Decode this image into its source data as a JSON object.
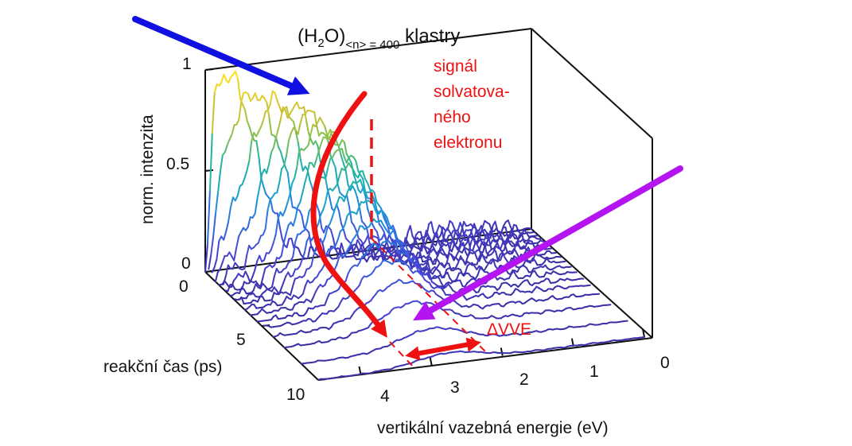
{
  "chart_data": {
    "type": "waterfall-3d",
    "title": {
      "prefix": "(H",
      "sub1": "2",
      "mid": "O)",
      "sub2": "<n> = 400",
      "suffix": " klastry"
    },
    "x_axis": {
      "label": "vertikální vazebná energie (eV)",
      "ticks": [
        "4",
        "3",
        "2",
        "1",
        "0"
      ],
      "range": [
        4.6,
        0
      ]
    },
    "y_axis": {
      "label": "reakční čas (ps)",
      "ticks": [
        "0",
        "5",
        "10"
      ],
      "range": [
        0,
        10
      ]
    },
    "z_axis": {
      "label": "norm. intenzita",
      "ticks": [
        "0",
        "0.5",
        "1"
      ],
      "range": [
        0,
        1
      ]
    },
    "series_times_ps": [
      0,
      0.3,
      0.6,
      0.9,
      1.2,
      1.5,
      1.8,
      2.2,
      2.6,
      3.0,
      3.5,
      4.0,
      4.6,
      5.2,
      6.0,
      7.0,
      8.5,
      10.0
    ],
    "peak_position_eV": [
      4.25,
      3.95,
      3.7,
      3.5,
      3.35,
      3.22,
      3.12,
      3.04,
      2.98,
      2.94,
      2.9,
      2.87,
      2.84,
      2.82,
      2.8,
      2.78,
      2.76,
      2.75
    ],
    "peak_height": [
      0.86,
      0.85,
      0.84,
      0.82,
      0.79,
      0.75,
      0.7,
      0.64,
      0.58,
      0.52,
      0.45,
      0.38,
      0.31,
      0.25,
      0.19,
      0.14,
      0.09,
      0.05
    ],
    "annotations": {
      "signal": [
        "signál",
        "solvatova-",
        "ného",
        "elektronu"
      ],
      "delta": "ΔVVE"
    },
    "colors": {
      "colormap": [
        "#3b2fa8",
        "#4a47d8",
        "#2f6fe0",
        "#1aa0d0",
        "#22b5a0",
        "#8ac04a",
        "#d8c530",
        "#f7e21e"
      ],
      "red_arrow": "#ee1111",
      "blue_arrow": "#1010e0",
      "magenta_arrow": "#b414f0"
    }
  }
}
